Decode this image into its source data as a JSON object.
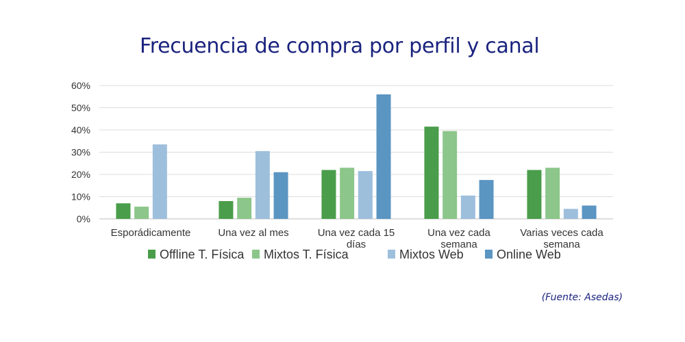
{
  "chart_data": {
    "type": "bar",
    "title": "Frecuencia de compra por perfil y canal",
    "categories": [
      [
        "Esporádicamente"
      ],
      [
        "Una vez al mes"
      ],
      [
        "Una vez cada 15",
        "días"
      ],
      [
        "Una vez cada",
        "semana"
      ],
      [
        "Varias veces cada",
        "semana"
      ]
    ],
    "series": [
      {
        "name": "Offline T. Física",
        "color": "#4a9d4a",
        "values": [
          7,
          8,
          22,
          41.5,
          22
        ]
      },
      {
        "name": "Mixtos T. Física",
        "color": "#8cc68a",
        "values": [
          5.5,
          9.5,
          23,
          39.5,
          23
        ]
      },
      {
        "name": "Mixtos Web",
        "color": "#9dbfdc",
        "values": [
          33.5,
          30.5,
          21.5,
          10.5,
          4.5
        ]
      },
      {
        "name": "Online Web",
        "color": "#5b95c2",
        "values": [
          0,
          21,
          56,
          17.5,
          6
        ]
      }
    ],
    "ylim": [
      0,
      60
    ],
    "yticks": [
      "0%",
      "10%",
      "20%",
      "30%",
      "40%",
      "50%",
      "60%"
    ],
    "ytick_values": [
      0,
      10,
      20,
      30,
      40,
      50,
      60
    ],
    "xlabel": "",
    "ylabel": "",
    "grid": true,
    "legend_position": "bottom"
  },
  "source_note": "(Fuente: Asedas)"
}
